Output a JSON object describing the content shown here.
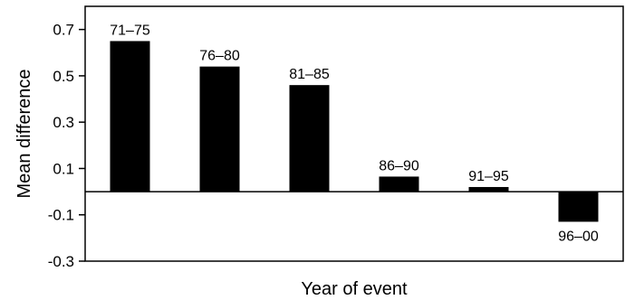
{
  "chart_data": {
    "type": "bar",
    "title": "",
    "xlabel": "Year of event",
    "ylabel": "Mean difference",
    "ylim": [
      -0.3,
      0.8
    ],
    "yticks": [
      -0.3,
      -0.1,
      0.1,
      0.3,
      0.5,
      0.7
    ],
    "ytick_labels": [
      "-0.3",
      "-0.1",
      "0.1",
      "0.3",
      "0.5",
      "0.7"
    ],
    "grid": false,
    "legend": "none",
    "bar_color": "#000000",
    "categories": [
      "71–75",
      "76–80",
      "81–85",
      "86–90",
      "91–95",
      "96–00"
    ],
    "values": [
      0.65,
      0.54,
      0.46,
      0.065,
      0.02,
      -0.13
    ]
  }
}
